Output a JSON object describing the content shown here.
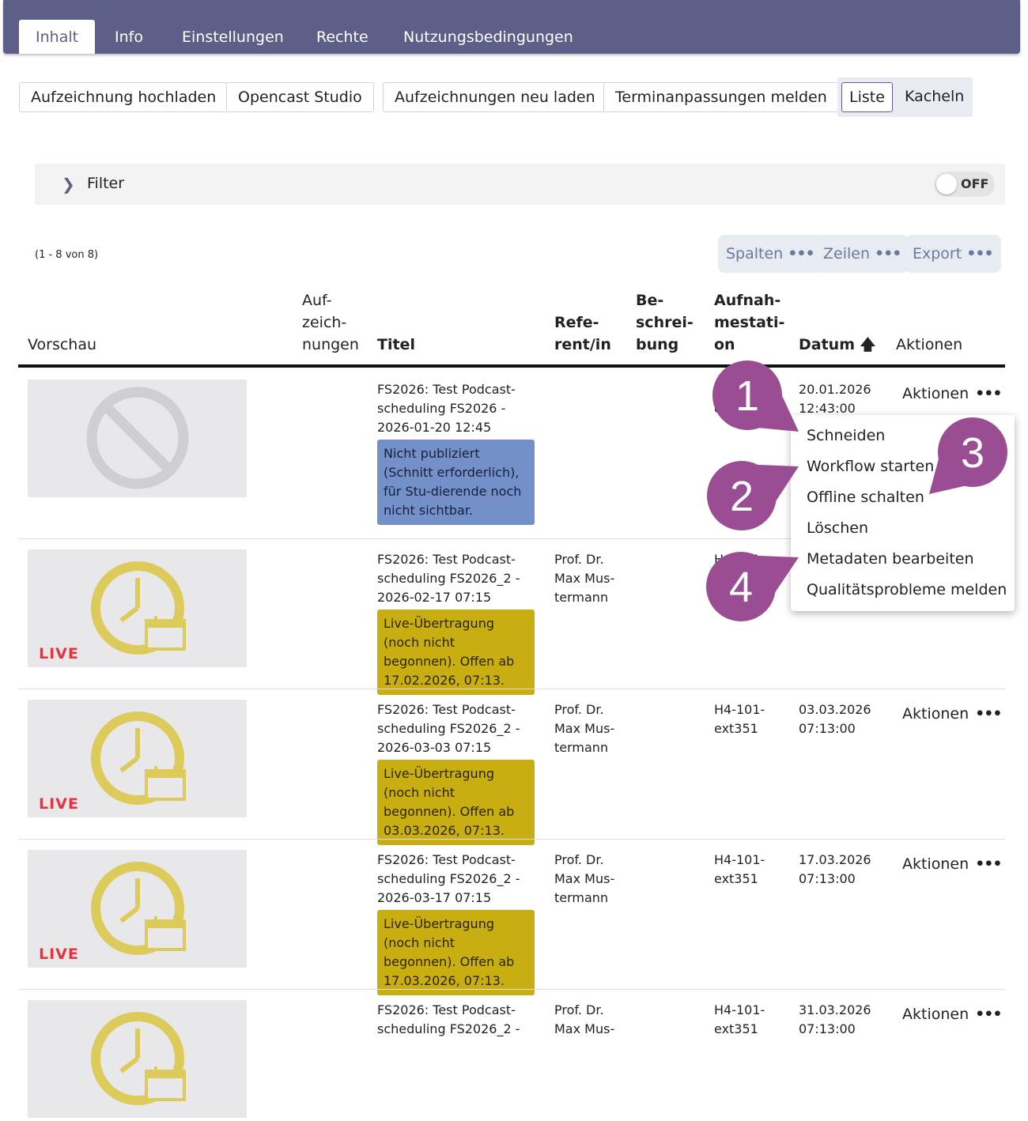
{
  "tabs": [
    {
      "label": "Inhalt",
      "active": true
    },
    {
      "label": "Info"
    },
    {
      "label": "Einstellungen"
    },
    {
      "label": "Rechte"
    },
    {
      "label": "Nutzungsbedingungen"
    }
  ],
  "toolbar": {
    "upload": "Aufzeichnung hochladen",
    "studio": "Opencast Studio",
    "reload": "Aufzeichnungen neu laden",
    "report": "Terminanpassungen melden",
    "view_list": "Liste",
    "view_tiles": "Kacheln",
    "view_selected": "Liste"
  },
  "filter": {
    "label": "Filter",
    "toggle": "OFF"
  },
  "pagination": {
    "count": "(1 - 8 von 8)"
  },
  "table_tools": {
    "columns": "Spalten",
    "rows": "Zeilen",
    "export": "Export",
    "more": "•••"
  },
  "columns": {
    "preview": "Vorschau",
    "recordings": "Auf-\nzeich-\nnungen",
    "title": "Titel",
    "presenter": "Refe-\nrent/in",
    "description": "Be-\nschrei-\nbung",
    "station": "Aufnah-\nmestati-\non",
    "date": "Datum",
    "actions": "Aktionen",
    "sort_icon": "arrow-up-icon"
  },
  "rows": [
    {
      "preview": "unavailable",
      "title": "FS2026: Test Podcast-\nscheduling FS2026 -\n2026-01-20 12:45",
      "presenter": "",
      "station": "e",
      "date": "20.01.2026\n12:43:00",
      "status": "Nicht publiziert (Schnitt erforderlich), für Stu-dierende noch nicht sichtbar.",
      "status_type": "blue",
      "actions": "Aktionen"
    },
    {
      "preview": "live",
      "live_label": "LIVE",
      "title": "FS2026: Test Podcast-\nscheduling FS2026_2 -\n2026-02-17 07:15",
      "presenter": "Prof. Dr.\nMax Mus-\ntermann",
      "station": "H4-101-",
      "date": "",
      "status": "Live-Übertragung (noch nicht begonnen). Offen ab 17.02.2026, 07:13.",
      "status_type": "yellow",
      "actions": ""
    },
    {
      "preview": "live",
      "live_label": "LIVE",
      "title": "FS2026: Test Podcast-\nscheduling FS2026_2 -\n2026-03-03 07:15",
      "presenter": "Prof. Dr.\nMax Mus-\ntermann",
      "station": "H4-101-\next351",
      "date": "03.03.2026\n07:13:00",
      "status": "Live-Übertragung (noch nicht begonnen). Offen ab 03.03.2026, 07:13.",
      "status_type": "yellow",
      "actions": "Aktionen"
    },
    {
      "preview": "live",
      "live_label": "LIVE",
      "title": "FS2026: Test Podcast-\nscheduling FS2026_2 -\n2026-03-17 07:15",
      "presenter": "Prof. Dr.\nMax Mus-\ntermann",
      "station": "H4-101-\next351",
      "date": "17.03.2026\n07:13:00",
      "status": "Live-Übertragung (noch nicht begonnen). Offen ab 17.03.2026, 07:13.",
      "status_type": "yellow",
      "actions": "Aktionen"
    },
    {
      "preview": "live",
      "live_label": "",
      "title": "FS2026: Test Podcast-\nscheduling FS2026_2 -",
      "presenter": "Prof. Dr.\nMax Mus-",
      "station": "H4-101-\next351",
      "date": "31.03.2026\n07:13:00",
      "status": "",
      "status_type": "",
      "actions": "Aktionen"
    }
  ],
  "actions_menu": {
    "items": [
      "Schneiden",
      "Workflow starten",
      "Offline schalten",
      "Löschen",
      "Metadaten bearbeiten",
      "Qualitätsprobleme melden"
    ]
  },
  "callouts": [
    "1",
    "2",
    "3",
    "4"
  ],
  "colors": {
    "header": "#5d5f88",
    "status_blue": "#7490c8",
    "status_yellow": "#c9ae12",
    "clock": "#dccb5a",
    "live": "#e8323c",
    "callout": "#9b4d94"
  }
}
